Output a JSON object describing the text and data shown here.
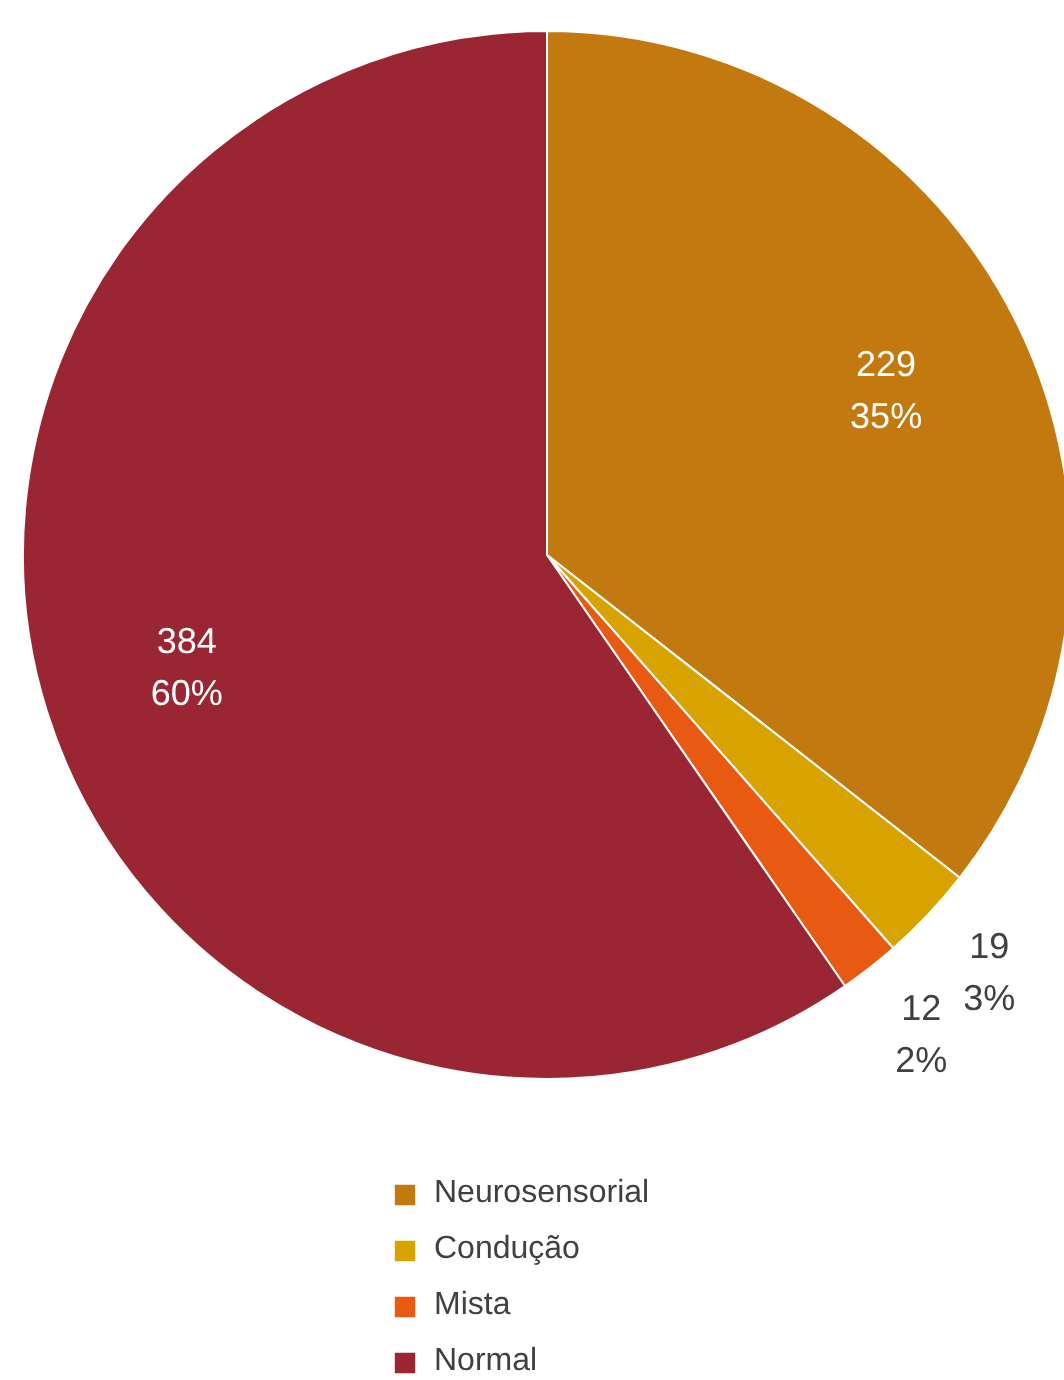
{
  "chart_data": {
    "type": "pie",
    "categories": [
      "Neurosensorial",
      "Condução",
      "Mista",
      "Normal"
    ],
    "values": [
      229,
      19,
      12,
      384
    ],
    "colors": [
      "#c27a10",
      "#d8a200",
      "#e85a12",
      "#9a2633"
    ],
    "value_labels": [
      "229\n35%",
      "19\n3%",
      "12\n2%",
      "384\n60%"
    ],
    "legend": "bottom"
  }
}
